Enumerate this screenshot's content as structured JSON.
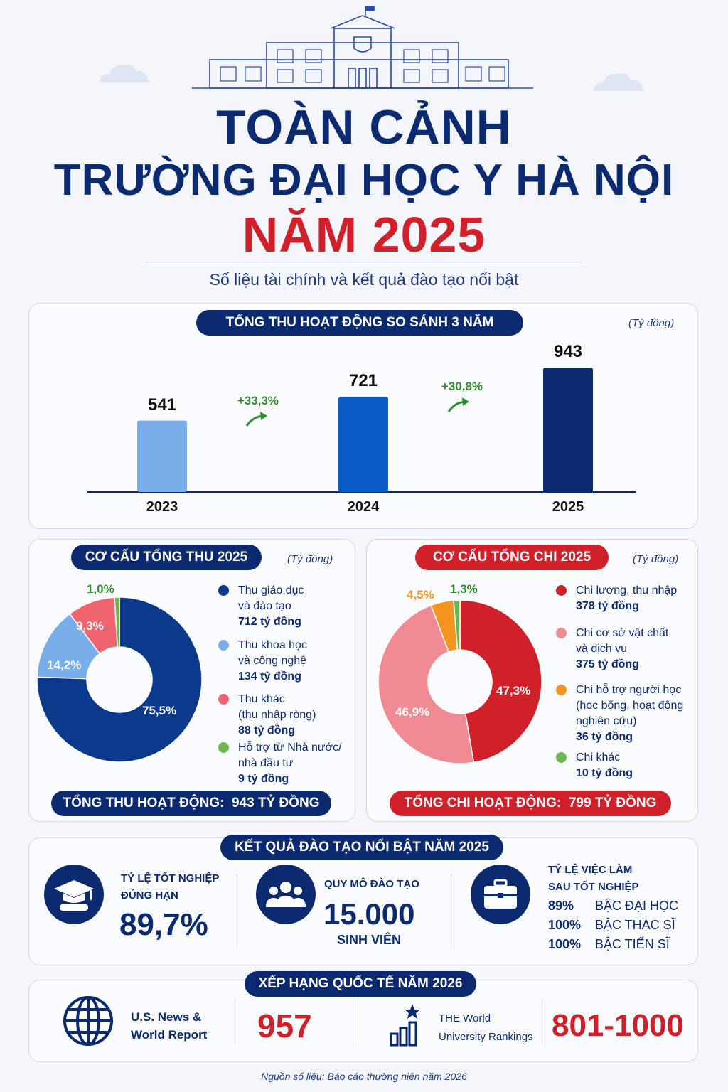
{
  "header": {
    "title_line1": "TOÀN CẢNH",
    "title_line2": "TRƯỜNG ĐẠI HỌC Y HÀ NỘI",
    "title_line3": "NĂM 2025",
    "subtitle": "Số liệu tài chính và kết quả đào tạo nổi bật"
  },
  "revenue_compare": {
    "title": "TỔNG THU HOẠT ĐỘNG SO SÁNH 3 NĂM",
    "unit": "(Tỷ đồng)",
    "growth": [
      "+33,3%",
      "+30,8%"
    ]
  },
  "income_structure": {
    "title": "CƠ CẤU TỔNG THU 2025",
    "unit": "(Tỷ đồng)",
    "total_label": "TỔNG THU HOẠT ĐỘNG:",
    "total_value": "943 TỶ ĐỒNG",
    "legend": [
      {
        "line1": "Thu giáo dục",
        "line2": "và đào tạo",
        "line3": "",
        "amount": "712 tỷ đồng"
      },
      {
        "line1": "Thu khoa học",
        "line2": "và công nghệ",
        "line3": "",
        "amount": "134 tỷ đồng"
      },
      {
        "line1": "Thu khác",
        "line2": "(thu nhập ròng)",
        "line3": "",
        "amount": "88 tỷ đồng"
      },
      {
        "line1": "Hỗ trợ từ Nhà nước/",
        "line2": "nhà đầu tư",
        "line3": "",
        "amount": "9 tỷ đồng"
      }
    ]
  },
  "expense_structure": {
    "title": "CƠ CẤU TỔNG CHI 2025",
    "unit": "(Tỷ đồng)",
    "total_label": "TỔNG CHI HOẠT ĐỘNG:",
    "total_value": "799 TỶ ĐỒNG",
    "legend": [
      {
        "line1": "Chi lương, thu nhập",
        "line2": "",
        "line3": "",
        "amount": "378 tỷ đồng"
      },
      {
        "line1": "Chi cơ sở vật chất",
        "line2": "và dịch vụ",
        "line3": "",
        "amount": "375 tỷ đồng"
      },
      {
        "line1": "Chi hỗ trợ người học",
        "line2": "(học bổng, hoạt động",
        "line3": "nghiên cứu)",
        "amount": "36 tỷ đồng"
      },
      {
        "line1": "Chi khác",
        "line2": "",
        "line3": "",
        "amount": "10 tỷ đồng"
      }
    ]
  },
  "training": {
    "title": "KẾT QUẢ ĐÀO TẠO NỔI BẬT NĂM 2025",
    "grad_label_1": "TỶ LỆ TỐT NGHIỆP",
    "grad_label_2": "ĐÚNG HẠN",
    "grad_value": "89,7%",
    "scale_label": "QUY MÔ ĐÀO TẠO",
    "scale_value": "15.000",
    "scale_unit": "SINH VIÊN",
    "emp_label_1": "TỶ LỆ VIỆC LÀM",
    "emp_label_2": "SAU TỐT NGHIỆP",
    "emp_rows": [
      {
        "pct": "89%",
        "level": "BẬC ĐẠI HỌC"
      },
      {
        "pct": "100%",
        "level": "BẬC THẠC SĨ"
      },
      {
        "pct": "100%",
        "level": "BẬC TIẾN SĨ"
      }
    ]
  },
  "ranking": {
    "title": "XẾP HẠNG QUỐC TẾ NĂM 2026",
    "usnews_label_1": "U.S. News &",
    "usnews_label_2": "World Report",
    "usnews_value": "957",
    "the_label_1": "THE World",
    "the_label_2": "University Rankings",
    "the_value": "801-1000"
  },
  "source": "Nguồn số liệu: Báo cáo thường niên năm 2026",
  "colors": {
    "navy": "#0b2a6f",
    "red": "#d0202a",
    "bar_2023": "#7aaeea",
    "bar_2024": "#0a5cc7",
    "bar_2025": "#0b2a6f",
    "income": [
      "#0b3a8c",
      "#78aeea",
      "#f06470",
      "#6cb84e"
    ],
    "expense": [
      "#d0202a",
      "#f08a93",
      "#f5941e",
      "#6cb84e"
    ]
  },
  "chart_data": [
    {
      "type": "bar",
      "categories": [
        "2023",
        "2024",
        "2025"
      ],
      "values": [
        541,
        721,
        943
      ],
      "ylim": [
        0,
        1000
      ]
    },
    {
      "type": "pie",
      "categories": [
        "Thu giáo dục và đào tạo",
        "Thu khoa học và công nghệ",
        "Thu khác (thu nhập ròng)",
        "Hỗ trợ từ Nhà nước/nhà đầu tư"
      ],
      "values": [
        712,
        134,
        88,
        9
      ],
      "labels": [
        "75,5%",
        "14,2%",
        "9,3%",
        "1,0%"
      ]
    },
    {
      "type": "pie",
      "categories": [
        "Chi lương, thu nhập",
        "Chi cơ sở vật chất và dịch vụ",
        "Chi hỗ trợ người học (học bổng, hoạt động nghiên cứu)",
        "Chi khác"
      ],
      "values": [
        378,
        375,
        36,
        10
      ],
      "labels": [
        "47,3%",
        "46,9%",
        "4,5%",
        "1,3%"
      ]
    }
  ]
}
